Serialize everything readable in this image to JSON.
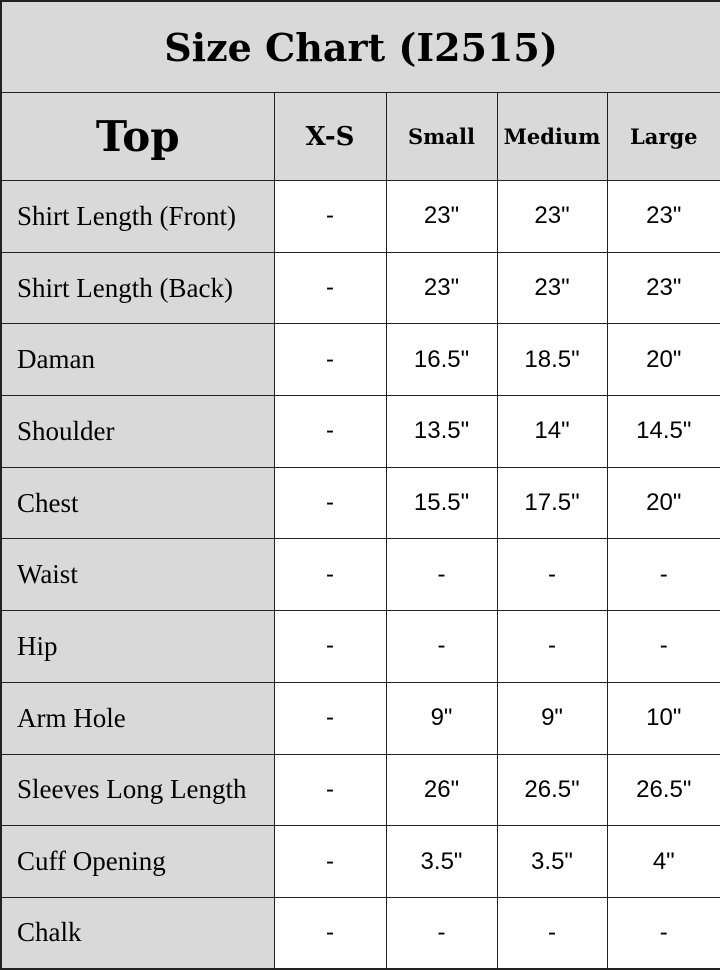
{
  "title": "Size Chart (I2515)",
  "header": {
    "section": "Top",
    "sizes": [
      "X-S",
      "Small",
      "Medium",
      "Large"
    ]
  },
  "rows": [
    {
      "label": "Shirt Length (Front)",
      "values": [
        "-",
        "23\"",
        "23\"",
        "23\""
      ]
    },
    {
      "label": "Shirt Length (Back)",
      "values": [
        "-",
        "23\"",
        "23\"",
        "23\""
      ]
    },
    {
      "label": "Daman",
      "values": [
        "-",
        "16.5\"",
        "18.5\"",
        "20\""
      ]
    },
    {
      "label": "Shoulder",
      "values": [
        "-",
        "13.5\"",
        "14\"",
        "14.5\""
      ]
    },
    {
      "label": "Chest",
      "values": [
        "-",
        "15.5\"",
        "17.5\"",
        "20\""
      ]
    },
    {
      "label": "Waist",
      "values": [
        "-",
        "-",
        "-",
        "-"
      ]
    },
    {
      "label": "Hip",
      "values": [
        "-",
        "-",
        "-",
        "-"
      ]
    },
    {
      "label": "Arm Hole",
      "values": [
        "-",
        "9\"",
        "9\"",
        "10\""
      ]
    },
    {
      "label": "Sleeves Long Length",
      "values": [
        "-",
        "26\"",
        "26.5\"",
        "26.5\""
      ]
    },
    {
      "label": "Cuff Opening",
      "values": [
        "-",
        "3.5\"",
        "3.5\"",
        "4\""
      ]
    },
    {
      "label": "Chalk",
      "values": [
        "-",
        "-",
        "-",
        "-"
      ]
    }
  ]
}
